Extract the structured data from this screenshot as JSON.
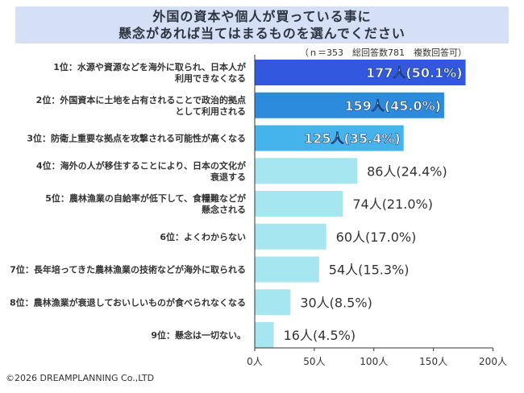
{
  "title_line1": "外国の資本や個人が買っている事に",
  "title_line2": "懸念があれば当てはまるものを選んでください",
  "note": "（ｎ＝353　総回答数781　複数回答可）",
  "copyright": "©2026 DREAMPLANNING Co.,LTD",
  "colors": {
    "header_bg": "#d5dff6",
    "bar_rank1": "#3258e0",
    "bar_rank2": "#2c8bdc",
    "bar_rank3": "#45b4ec",
    "bar_rest": "#a6e6f1",
    "axis": "#333333"
  },
  "chart_data": {
    "type": "bar",
    "orientation": "horizontal",
    "categories": [
      [
        "1位：水源や資源などを海外に取られ、日本人が",
        "利用できなくなる"
      ],
      [
        "2位：外国資本に土地を占有されることで政治的拠点",
        "として利用される"
      ],
      [
        "3位：防衛上重要な拠点を攻撃される可能性が高くなる"
      ],
      [
        "4位：海外の人が移住することにより、日本の文化が",
        "衰退する"
      ],
      [
        "5位：農林漁業の自給率が低下して、食糧難などが",
        "懸念される"
      ],
      [
        "6位：よくわからない"
      ],
      [
        "7位：長年培ってきた農林漁業の技術などが海外に取られる"
      ],
      [
        "8位：農林漁業が衰退しておいしいものが食べられなくなる"
      ],
      [
        "9位：懸念は一切ない。"
      ]
    ],
    "values": [
      177,
      159,
      125,
      86,
      74,
      60,
      54,
      30,
      16
    ],
    "data_labels": [
      "177人(50.1%)",
      "159人(45.0%)",
      "125人(35.4%)",
      "86人(24.4%)",
      "74人(21.0%)",
      "60人(17.0%)",
      "54人(15.3%)",
      "30人(8.5%)",
      "16人(4.5%)"
    ],
    "xlim": [
      0,
      200
    ],
    "x_ticks": [
      0,
      50,
      100,
      150,
      200
    ],
    "x_tick_labels": [
      "0人",
      "50人",
      "100人",
      "150人",
      "200人"
    ],
    "grid": false,
    "legend": "none"
  }
}
